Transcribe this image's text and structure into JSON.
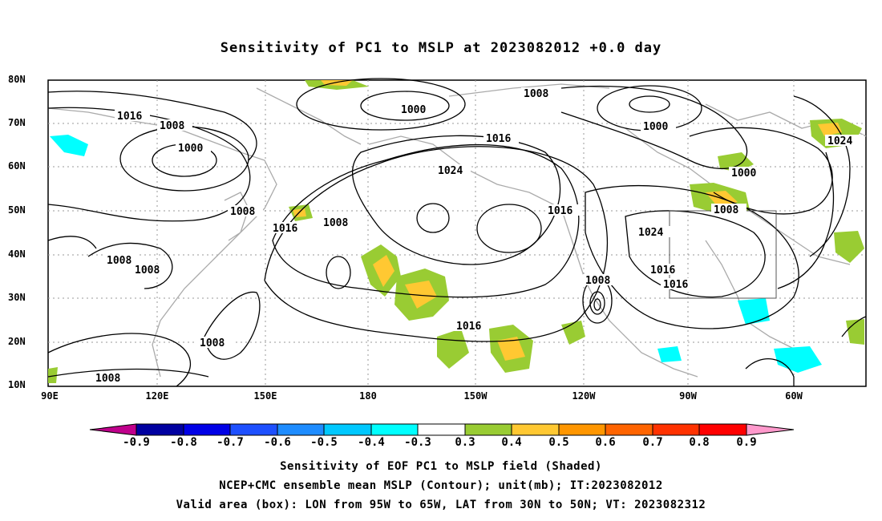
{
  "title": "Sensitivity of PC1 to MSLP at 2023082012 +0.0 day",
  "lat_labels": [
    "80N",
    "70N",
    "60N",
    "50N",
    "40N",
    "30N",
    "20N",
    "10N"
  ],
  "lon_labels": [
    "90E",
    "120E",
    "150E",
    "180",
    "150W",
    "120W",
    "90W",
    "60W"
  ],
  "contour_labels": [
    "1000",
    "1008",
    "1000",
    "1000",
    "1000",
    "1008",
    "1016",
    "1008",
    "1016",
    "1024",
    "1024",
    "1008",
    "1016",
    "1016",
    "1024",
    "1008",
    "1016",
    "1008",
    "1008",
    "1016",
    "1016",
    "1008",
    "1008",
    "1008",
    "1008"
  ],
  "colorbar": {
    "ticks": [
      "-0.9",
      "-0.8",
      "-0.7",
      "-0.6",
      "-0.5",
      "-0.4",
      "-0.3",
      "0.3",
      "0.4",
      "0.5",
      "0.6",
      "0.7",
      "0.8",
      "0.9"
    ],
    "colors": [
      "#c0008c",
      "#0000a0",
      "#0000e6",
      "#1e50ff",
      "#1e8cff",
      "#00c8ff",
      "#00ffff",
      "#ffffff",
      "#99cc33",
      "#ffc832",
      "#ff9600",
      "#ff6400",
      "#ff3200",
      "#ff0000",
      "#ff99cc"
    ]
  },
  "captions": [
    "Sensitivity of EOF PC1 to MSLP field (Shaded)",
    "NCEP+CMC ensemble mean MSLP (Contour); unit(mb); IT:2023082012",
    "Valid area (box): LON from 95W to 65W, LAT from 30N to 50N; VT: 2023082312"
  ]
}
